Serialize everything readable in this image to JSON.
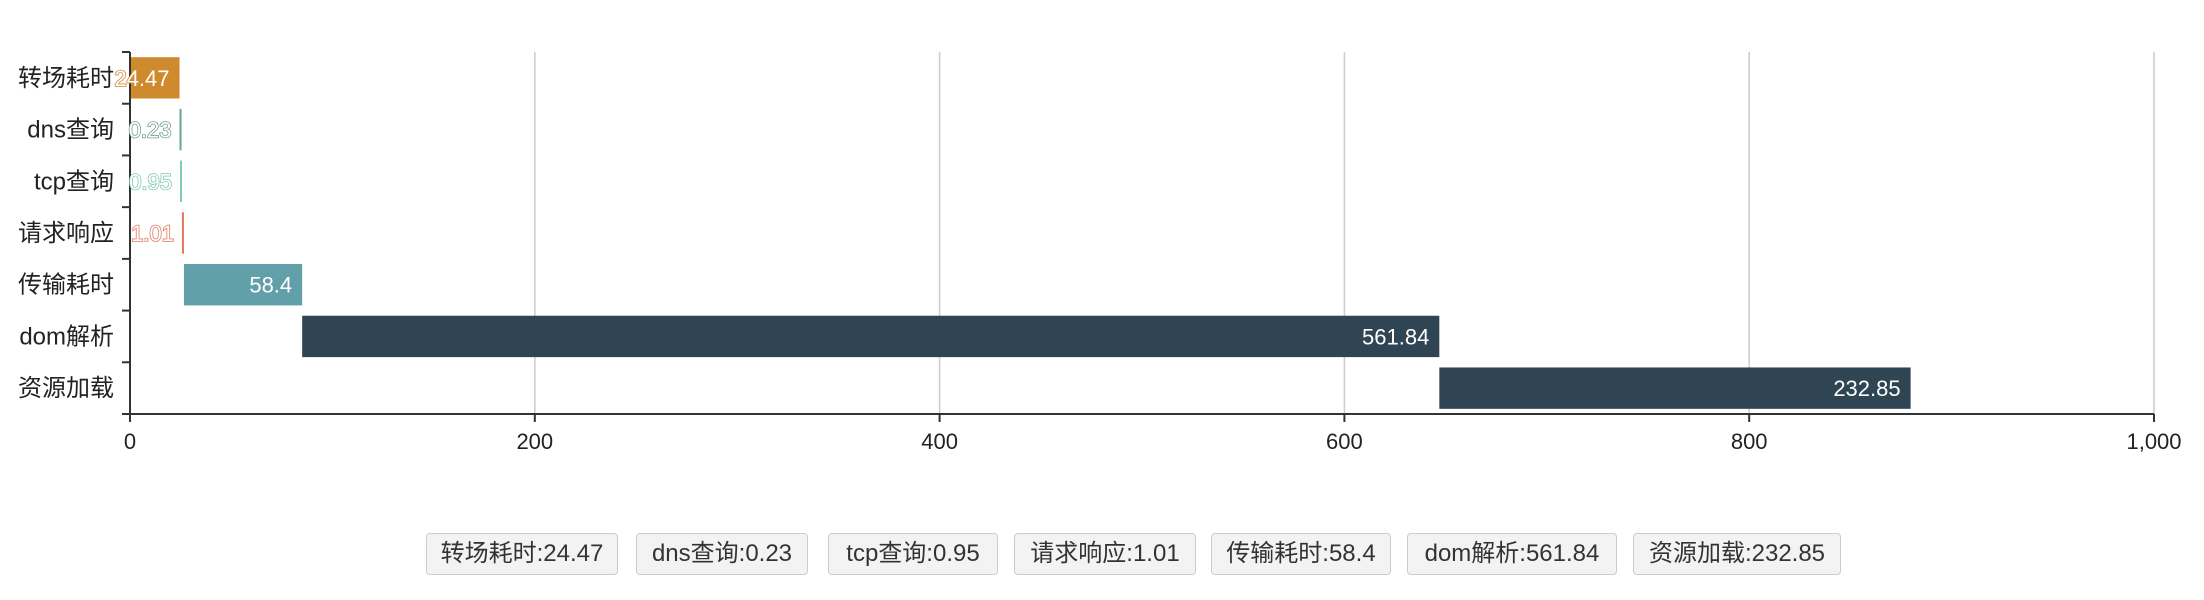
{
  "chart_data": {
    "type": "bar",
    "orientation": "horizontal",
    "stacked_waterfall": true,
    "categories": [
      "转场耗时",
      "dns查询",
      "tcp查询",
      "请求响应",
      "传输耗时",
      "dom解析",
      "资源加载"
    ],
    "values": [
      24.47,
      0.23,
      0.95,
      1.01,
      58.4,
      561.84,
      232.85
    ],
    "starts": [
      0,
      24.47,
      24.7,
      25.65,
      26.66,
      85.06,
      646.9
    ],
    "colors": [
      "#d08a2e",
      "#6fa38c",
      "#7ecbb3",
      "#e07a5f",
      "#61a0a8",
      "#2f4554",
      "#2f4554"
    ],
    "data_labels": [
      "24.47",
      "0.23",
      "0.95",
      "1.01",
      "58.4",
      "561.84",
      "232.85"
    ],
    "xlim": [
      0,
      1000
    ],
    "x_ticks": [
      "0",
      "200",
      "400",
      "600",
      "800",
      "1,000"
    ],
    "x_tick_values": [
      0,
      200,
      400,
      600,
      800,
      1000
    ],
    "grid": true
  },
  "summary_tags": [
    "转场耗时:24.47",
    "dns查询:0.23",
    "tcp查询:0.95",
    "请求响应:1.01",
    "传输耗时:58.4",
    "dom解析:561.84",
    "资源加载:232.85"
  ]
}
